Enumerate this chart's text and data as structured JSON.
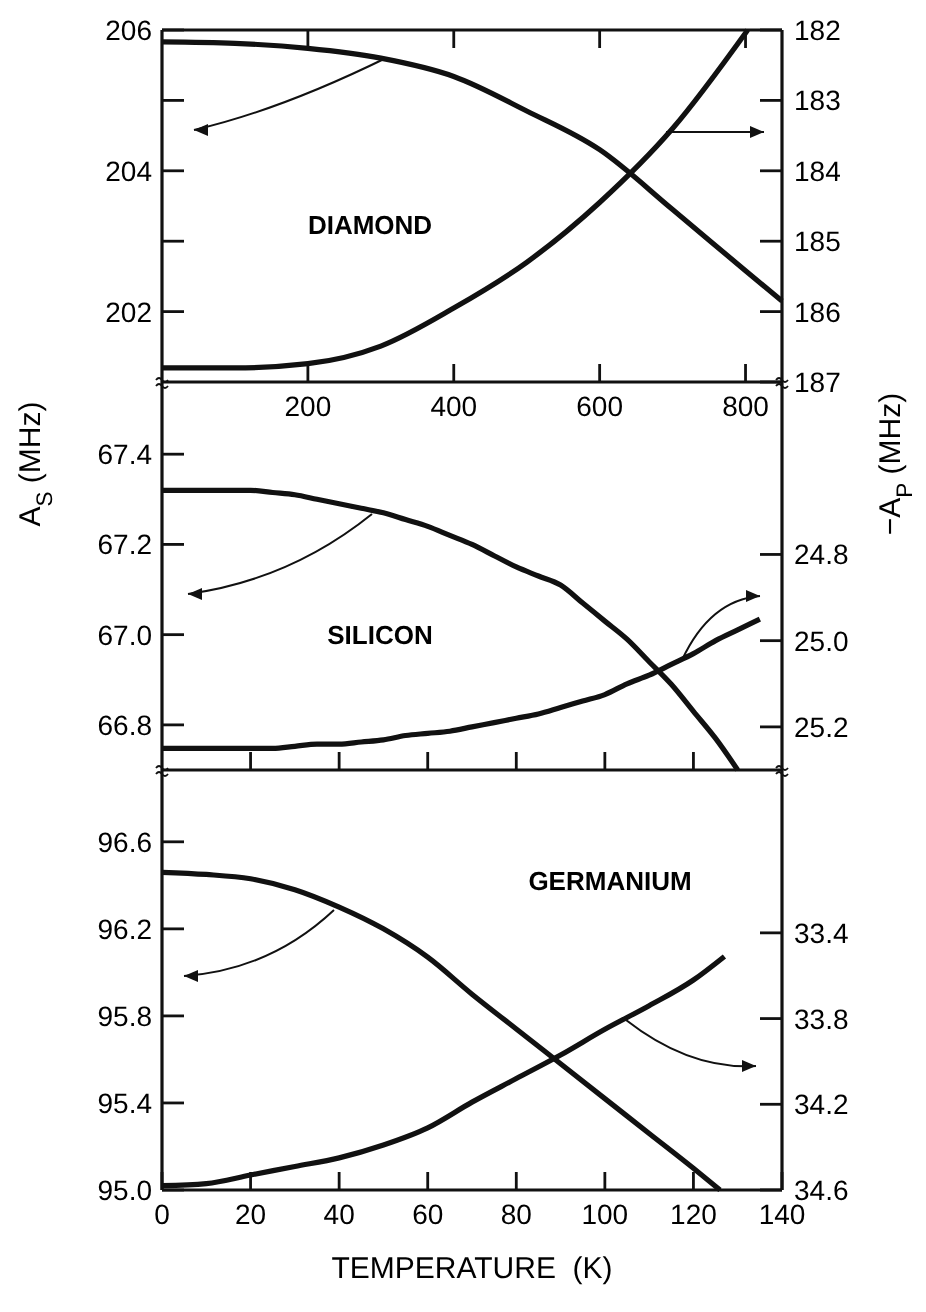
{
  "chart_data": [
    {
      "type": "line",
      "ylabel": "A$_{S}$ (MHz)",
      "y2label": "−A$_{P}$ (MHz)",
      "annotations": [
        "DIAMOND"
      ],
      "xlim": [
        0,
        850
      ],
      "xticks": [
        200,
        400,
        600,
        800
      ],
      "ylim": [
        201,
        206
      ],
      "yticks": [
        {
          "value": 202,
          "label": "202"
        },
        {
          "value": 203,
          "label": null
        },
        {
          "value": 204,
          "label": "204"
        },
        {
          "value": 205,
          "label": null
        },
        {
          "value": 206,
          "label": "206"
        }
      ],
      "y2lim": [
        187,
        182
      ],
      "y2ticks": [
        182,
        183,
        184,
        185,
        186,
        187
      ],
      "grid": false,
      "series": [
        {
          "color": "#111111",
          "x": [
            0,
            100,
            200,
            300,
            400,
            500,
            600,
            700,
            800,
            850
          ],
          "values": [
            205.83,
            205.81,
            205.74,
            205.6,
            205.34,
            204.85,
            204.3,
            203.45,
            202.58,
            202.15
          ]
        },
        {
          "color": "#111111",
          "axis": "y2",
          "x": [
            0,
            100,
            200,
            300,
            400,
            500,
            600,
            700,
            803
          ],
          "values": [
            186.8,
            186.8,
            186.74,
            186.49,
            185.95,
            185.3,
            184.45,
            183.4,
            182.0
          ]
        }
      ]
    },
    {
      "type": "line",
      "annotations": [
        "SILICON"
      ],
      "tick_labels": "y",
      "categories": [
        null,
        null,
        null,
        null,
        null,
        null,
        null,
        null,
        null,
        null,
        null,
        null,
        null,
        null,
        null,
        null,
        null,
        null,
        null,
        null,
        null,
        null,
        null,
        null,
        null,
        null,
        null,
        null,
        null
      ],
      "ylim": [
        66.7,
        67.56
      ],
      "yticks": [
        {
          "value": 66.8,
          "label": "66.8"
        },
        {
          "value": 67,
          "label": "67.0"
        },
        {
          "value": 67.2,
          "label": "67.2"
        },
        {
          "value": 67.4,
          "label": "67.4"
        }
      ],
      "y2lim": [
        25.3,
        24.4
      ],
      "y2ticks": [
        24.8,
        {
          "value": 25,
          "label": "25.0"
        },
        25.2
      ],
      "grid": false,
      "series": [
        {
          "color": "#111111",
          "values": [
            67.32,
            67.32,
            67.32,
            67.32,
            67.32,
            67.315,
            67.31,
            67.3,
            67.29,
            67.28,
            67.27,
            67.255,
            67.24,
            67.22,
            67.2,
            67.175,
            67.15,
            67.13,
            67.11,
            67.07,
            67.03,
            66.99,
            66.94,
            66.89,
            66.83,
            66.77,
            66.7,
            null,
            null
          ]
        },
        {
          "color": "#111111",
          "axis": "y2",
          "values": [
            25.25,
            25.25,
            25.25,
            25.25,
            25.25,
            25.25,
            25.245,
            25.24,
            25.24,
            25.235,
            25.23,
            25.22,
            25.215,
            25.21,
            25.2,
            25.19,
            25.18,
            25.17,
            25.155,
            25.14,
            25.125,
            25.1,
            25.08,
            25.055,
            25.03,
            25.0,
            24.975,
            24.95,
            null
          ]
        }
      ]
    },
    {
      "type": "line",
      "annotations": [
        "GERMANIUM"
      ],
      "xlabel": "TEMPERATURE  (K)",
      "xlim": [
        0,
        140
      ],
      "xticks": [
        0,
        20,
        40,
        60,
        80,
        100,
        120,
        140
      ],
      "ylim": [
        95.0,
        96.93
      ],
      "yticks": [
        {
          "value": 95,
          "label": "95.0"
        },
        95.4,
        95.8,
        96.2,
        96.6
      ],
      "y2lim": [
        34.6,
        32.64
      ],
      "y2ticks": [
        33.4,
        33.8,
        34.2,
        34.6
      ],
      "grid": false,
      "series": [
        {
          "color": "#111111",
          "x": [
            0,
            10,
            20,
            30,
            40,
            50,
            60,
            70,
            80,
            90,
            100,
            110,
            120,
            126
          ],
          "values": [
            96.46,
            96.45,
            96.43,
            96.38,
            96.3,
            96.2,
            96.07,
            95.9,
            95.74,
            95.58,
            95.42,
            95.26,
            95.1,
            95.0
          ]
        },
        {
          "color": "#111111",
          "axis": "y2",
          "x": [
            0,
            10,
            20,
            30,
            40,
            50,
            60,
            70,
            80,
            90,
            100,
            110,
            120,
            127
          ],
          "values": [
            34.58,
            34.57,
            34.53,
            34.49,
            34.45,
            34.39,
            34.31,
            34.19,
            34.08,
            33.97,
            33.85,
            33.74,
            33.62,
            33.51
          ]
        }
      ]
    }
  ]
}
